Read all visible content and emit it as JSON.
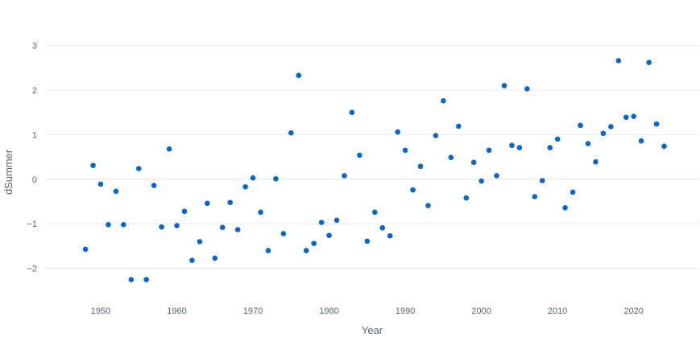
{
  "colors": {
    "marker": "#0a67c6",
    "grid": "#e6e9ee",
    "text": "#5b6575"
  },
  "chart_data": {
    "type": "scatter",
    "title": "",
    "xlabel": "Year",
    "ylabel": "dSummer",
    "xlim": [
      1942.7,
      2028.6
    ],
    "ylim": [
      -2.62,
      3.3
    ],
    "xticks": [
      1950,
      1960,
      1970,
      1980,
      1990,
      2000,
      2010,
      2020
    ],
    "yticks": [
      -2,
      -1,
      0,
      1,
      2,
      3
    ],
    "ytick_labels": [
      "−2",
      "−1",
      "0",
      "1",
      "2",
      "3"
    ],
    "grid": true,
    "x": [
      1948,
      1949,
      1950,
      1951,
      1952,
      1953,
      1954,
      1955,
      1956,
      1957,
      1958,
      1959,
      1960,
      1961,
      1962,
      1963,
      1964,
      1965,
      1966,
      1967,
      1968,
      1969,
      1970,
      1971,
      1972,
      1973,
      1974,
      1975,
      1976,
      1977,
      1978,
      1979,
      1980,
      1981,
      1982,
      1983,
      1984,
      1985,
      1986,
      1987,
      1988,
      1989,
      1990,
      1991,
      1992,
      1993,
      1994,
      1995,
      1996,
      1997,
      1998,
      1999,
      2000,
      2001,
      2002,
      2003,
      2004,
      2005,
      2006,
      2007,
      2008,
      2009,
      2010,
      2011,
      2012,
      2013,
      2014,
      2015,
      2016,
      2017,
      2018,
      2019,
      2020,
      2021,
      2022,
      2023,
      2024
    ],
    "y": [
      -1.57,
      0.31,
      -0.11,
      -1.02,
      -0.27,
      -1.02,
      -2.25,
      0.24,
      -2.25,
      -0.14,
      -1.07,
      0.68,
      -1.04,
      -0.72,
      -1.82,
      -1.4,
      -0.54,
      -1.77,
      -1.08,
      -0.52,
      -1.13,
      -0.17,
      0.03,
      -0.74,
      -1.6,
      0.01,
      -1.22,
      1.04,
      2.33,
      -1.6,
      -1.44,
      -0.97,
      -1.26,
      -0.92,
      0.08,
      1.5,
      0.54,
      -1.39,
      -0.74,
      -1.09,
      -1.27,
      1.06,
      0.65,
      -0.24,
      0.29,
      -0.59,
      0.98,
      1.76,
      0.49,
      1.19,
      -0.42,
      0.38,
      -0.04,
      0.65,
      0.08,
      2.1,
      0.76,
      0.71,
      2.03,
      -0.39,
      -0.03,
      0.71,
      0.9,
      -0.64,
      -0.29,
      1.21,
      0.8,
      0.39,
      1.03,
      1.18,
      2.66,
      1.39,
      1.41,
      0.86,
      2.62,
      1.24,
      0.74
    ]
  }
}
